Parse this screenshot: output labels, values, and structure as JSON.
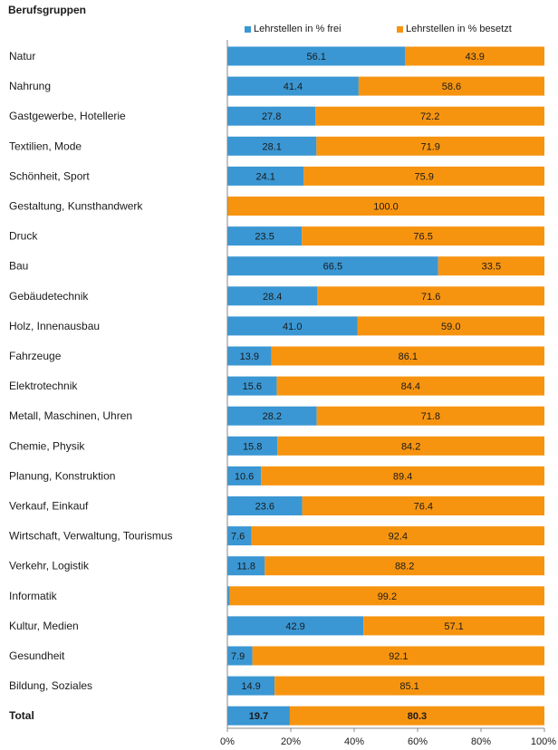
{
  "chart_data": {
    "type": "bar",
    "orientation": "horizontal",
    "stacked": true,
    "title": "Berufsgruppen",
    "categories": [
      "Natur",
      "Nahrung",
      "Gastgewerbe, Hotellerie",
      "Textilien, Mode",
      "Schönheit, Sport",
      "Gestaltung, Kunsthandwerk",
      "Druck",
      "Bau",
      "Gebäudetechnik",
      "Holz, Innenausbau",
      "Fahrzeuge",
      "Elektrotechnik",
      "Metall, Maschinen, Uhren",
      "Chemie, Physik",
      "Planung, Konstruktion",
      "Verkauf, Einkauf",
      "Wirtschaft, Verwaltung, Tourismus",
      "Verkehr, Logistik",
      "Informatik",
      "Kultur, Medien",
      "Gesundheit",
      "Bildung, Soziales",
      "Total"
    ],
    "series": [
      {
        "name": "Lehrstellen in % frei",
        "color": "#3a97d3",
        "values": [
          56.1,
          41.4,
          27.8,
          28.1,
          24.1,
          0.0,
          23.5,
          66.5,
          28.4,
          41.0,
          13.9,
          15.6,
          28.2,
          15.8,
          10.6,
          23.6,
          7.6,
          11.8,
          0.8,
          42.9,
          7.9,
          14.9,
          19.7
        ],
        "labels": [
          "56.1",
          "41.4",
          "27.8",
          "28.1",
          "24.1",
          "",
          "23.5",
          "66.5",
          "28.4",
          "41.0",
          "13.9",
          "15.6",
          "28.2",
          "15.8",
          "10.6",
          "23.6",
          "7.6",
          "11.8",
          "0.8",
          "42.9",
          "7.9",
          "14.9",
          "19.7"
        ]
      },
      {
        "name": "Lehrstellen in % besetzt",
        "color": "#f7940f",
        "values": [
          43.9,
          58.6,
          72.2,
          71.9,
          75.9,
          100.0,
          76.5,
          33.5,
          71.6,
          59.0,
          86.1,
          84.4,
          71.8,
          84.2,
          89.4,
          76.4,
          92.4,
          88.2,
          99.2,
          57.1,
          92.1,
          85.1,
          80.3
        ],
        "labels": [
          "43.9",
          "58.6",
          "72.2",
          "71.9",
          "75.9",
          "100.0",
          "76.5",
          "33.5",
          "71.6",
          "59.0",
          "86.1",
          "84.4",
          "71.8",
          "84.2",
          "89.4",
          "76.4",
          "92.4",
          "88.2",
          "99.2",
          "57.1",
          "92.1",
          "85.1",
          "80.3"
        ]
      }
    ],
    "xlim": [
      0,
      100
    ],
    "x_ticks": [
      "0%",
      "20%",
      "40%",
      "60%",
      "80%",
      "100%"
    ],
    "legend_position": "top",
    "grid": false
  }
}
